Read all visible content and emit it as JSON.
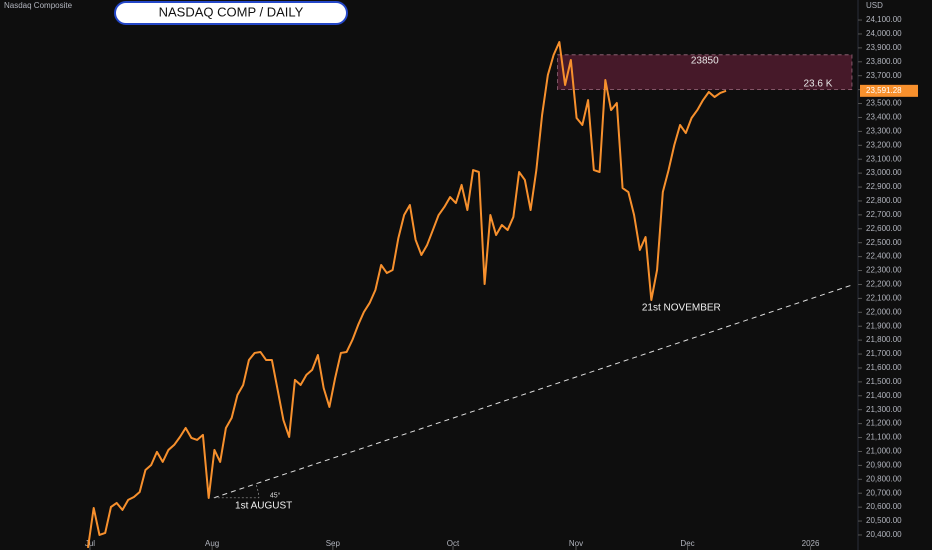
{
  "chart_data": {
    "type": "line",
    "title": "NASDAQ COMP / DAILY",
    "symbol": "Nasdaq Composite",
    "currency": "USD",
    "x": [
      0,
      1,
      2,
      3,
      4,
      5,
      6,
      7,
      8,
      9,
      10,
      11,
      12,
      13,
      14,
      15,
      16,
      17,
      18,
      19,
      20,
      21,
      22,
      23,
      24,
      25,
      26,
      27,
      28,
      29,
      30,
      31,
      32,
      33,
      34,
      35,
      36,
      37,
      38,
      39,
      40,
      41,
      42,
      43,
      44,
      45,
      46,
      47,
      48,
      49,
      50,
      51,
      52,
      53,
      54,
      55,
      56,
      57,
      58,
      59,
      60,
      61,
      62,
      63,
      64,
      65,
      66,
      67,
      68,
      69,
      70,
      71,
      72,
      73,
      74,
      75,
      76,
      77,
      78,
      79,
      80,
      81,
      82,
      83,
      84,
      85,
      86,
      87,
      88,
      89,
      90,
      91,
      92,
      93,
      94,
      95,
      96,
      97,
      98,
      99,
      100,
      101,
      102,
      103,
      104,
      105,
      106,
      107,
      108,
      109,
      110,
      111
    ],
    "series": [
      {
        "name": "Nasdaq Composite",
        "color": "#f7902d",
        "values": [
          20307,
          20594,
          20400,
          20415,
          20601,
          20630,
          20580,
          20652,
          20673,
          20709,
          20867,
          20903,
          20997,
          20925,
          21011,
          21047,
          21104,
          21169,
          21097,
          21083,
          21119,
          20666,
          21011,
          20925,
          21169,
          21241,
          21406,
          21478,
          21657,
          21708,
          21715,
          21657,
          21657,
          21442,
          21226,
          21104,
          21514,
          21478,
          21550,
          21586,
          21693,
          21456,
          21320,
          21528,
          21708,
          21715,
          21801,
          21909,
          22002,
          22067,
          22160,
          22340,
          22282,
          22304,
          22534,
          22699,
          22771,
          22520,
          22412,
          22484,
          22591,
          22699,
          22757,
          22828,
          22785,
          22915,
          22735,
          23022,
          23008,
          22203,
          22699,
          22555,
          22627,
          22591,
          22685,
          23008,
          22951,
          22735,
          23022,
          23418,
          23705,
          23849,
          23942,
          23633,
          23813,
          23396,
          23346,
          23525,
          23022,
          23008,
          23669,
          23453,
          23504,
          22893,
          22864,
          22699,
          22448,
          22541,
          22088,
          22304,
          22864,
          23022,
          23202,
          23346,
          23288,
          23396,
          23453,
          23525,
          23583,
          23547,
          23576,
          23591.28
        ]
      }
    ],
    "xlim": [
      -15.3,
      134.3
    ],
    "xticks": [
      {
        "value": 0.35,
        "label": "Jul"
      },
      {
        "value": 21.6,
        "label": "Aug"
      },
      {
        "value": 42.6,
        "label": "Sep"
      },
      {
        "value": 63.5,
        "label": "Oct"
      },
      {
        "value": 84.9,
        "label": "Nov"
      },
      {
        "value": 104.3,
        "label": "Dec"
      },
      {
        "value": 125.7,
        "label": "2026"
      }
    ],
    "ylim": [
      20292,
      24244
    ],
    "yticks": [
      {
        "value": 24100,
        "label": "24,100.00"
      },
      {
        "value": 24000,
        "label": "24,000.00"
      },
      {
        "value": 23900,
        "label": "23,900.00"
      },
      {
        "value": 23800,
        "label": "23,800.00"
      },
      {
        "value": 23700,
        "label": "23,700.00"
      },
      {
        "value": 23600,
        "label": "23,600.00"
      },
      {
        "value": 23500,
        "label": "23,500.00"
      },
      {
        "value": 23400,
        "label": "23,400.00"
      },
      {
        "value": 23300,
        "label": "23,300.00"
      },
      {
        "value": 23200,
        "label": "23,200.00"
      },
      {
        "value": 23100,
        "label": "23,100.00"
      },
      {
        "value": 23000,
        "label": "23,000.00"
      },
      {
        "value": 22900,
        "label": "22,900.00"
      },
      {
        "value": 22800,
        "label": "22,800.00"
      },
      {
        "value": 22700,
        "label": "22,700.00"
      },
      {
        "value": 22600,
        "label": "22,600.00"
      },
      {
        "value": 22500,
        "label": "22,500.00"
      },
      {
        "value": 22400,
        "label": "22,400.00"
      },
      {
        "value": 22300,
        "label": "22,300.00"
      },
      {
        "value": 22200,
        "label": "22,200.00"
      },
      {
        "value": 22100,
        "label": "22,100.00"
      },
      {
        "value": 22000,
        "label": "22,000.00"
      },
      {
        "value": 21900,
        "label": "21,900.00"
      },
      {
        "value": 21800,
        "label": "21,800.00"
      },
      {
        "value": 21700,
        "label": "21,700.00"
      },
      {
        "value": 21600,
        "label": "21,600.00"
      },
      {
        "value": 21500,
        "label": "21,500.00"
      },
      {
        "value": 21400,
        "label": "21,400.00"
      },
      {
        "value": 21300,
        "label": "21,300.00"
      },
      {
        "value": 21200,
        "label": "21,200.00"
      },
      {
        "value": 21100,
        "label": "21,100.00"
      },
      {
        "value": 21000,
        "label": "21,000.00"
      },
      {
        "value": 20900,
        "label": "20,900.00"
      },
      {
        "value": 20800,
        "label": "20,800.00"
      },
      {
        "value": 20700,
        "label": "20,700.00"
      },
      {
        "value": 20600,
        "label": "20,600.00"
      },
      {
        "value": 20500,
        "label": "20,500.00"
      },
      {
        "value": 20400,
        "label": "20,400.00"
      }
    ],
    "last_price": {
      "value": 23591.28,
      "label": "23,591.28"
    },
    "zone": {
      "x": [
        81.7,
        132.9
      ],
      "top": 23850,
      "bottom": {
        "value": 23600,
        "label": "23.6 K"
      }
    },
    "trendline": {
      "x": [
        21.9,
        132.9
      ],
      "y": [
        20667,
        22196
      ],
      "angle_label": "45°"
    },
    "annotations": [
      "1st AUGUST",
      "21st NOVEMBER"
    ]
  }
}
